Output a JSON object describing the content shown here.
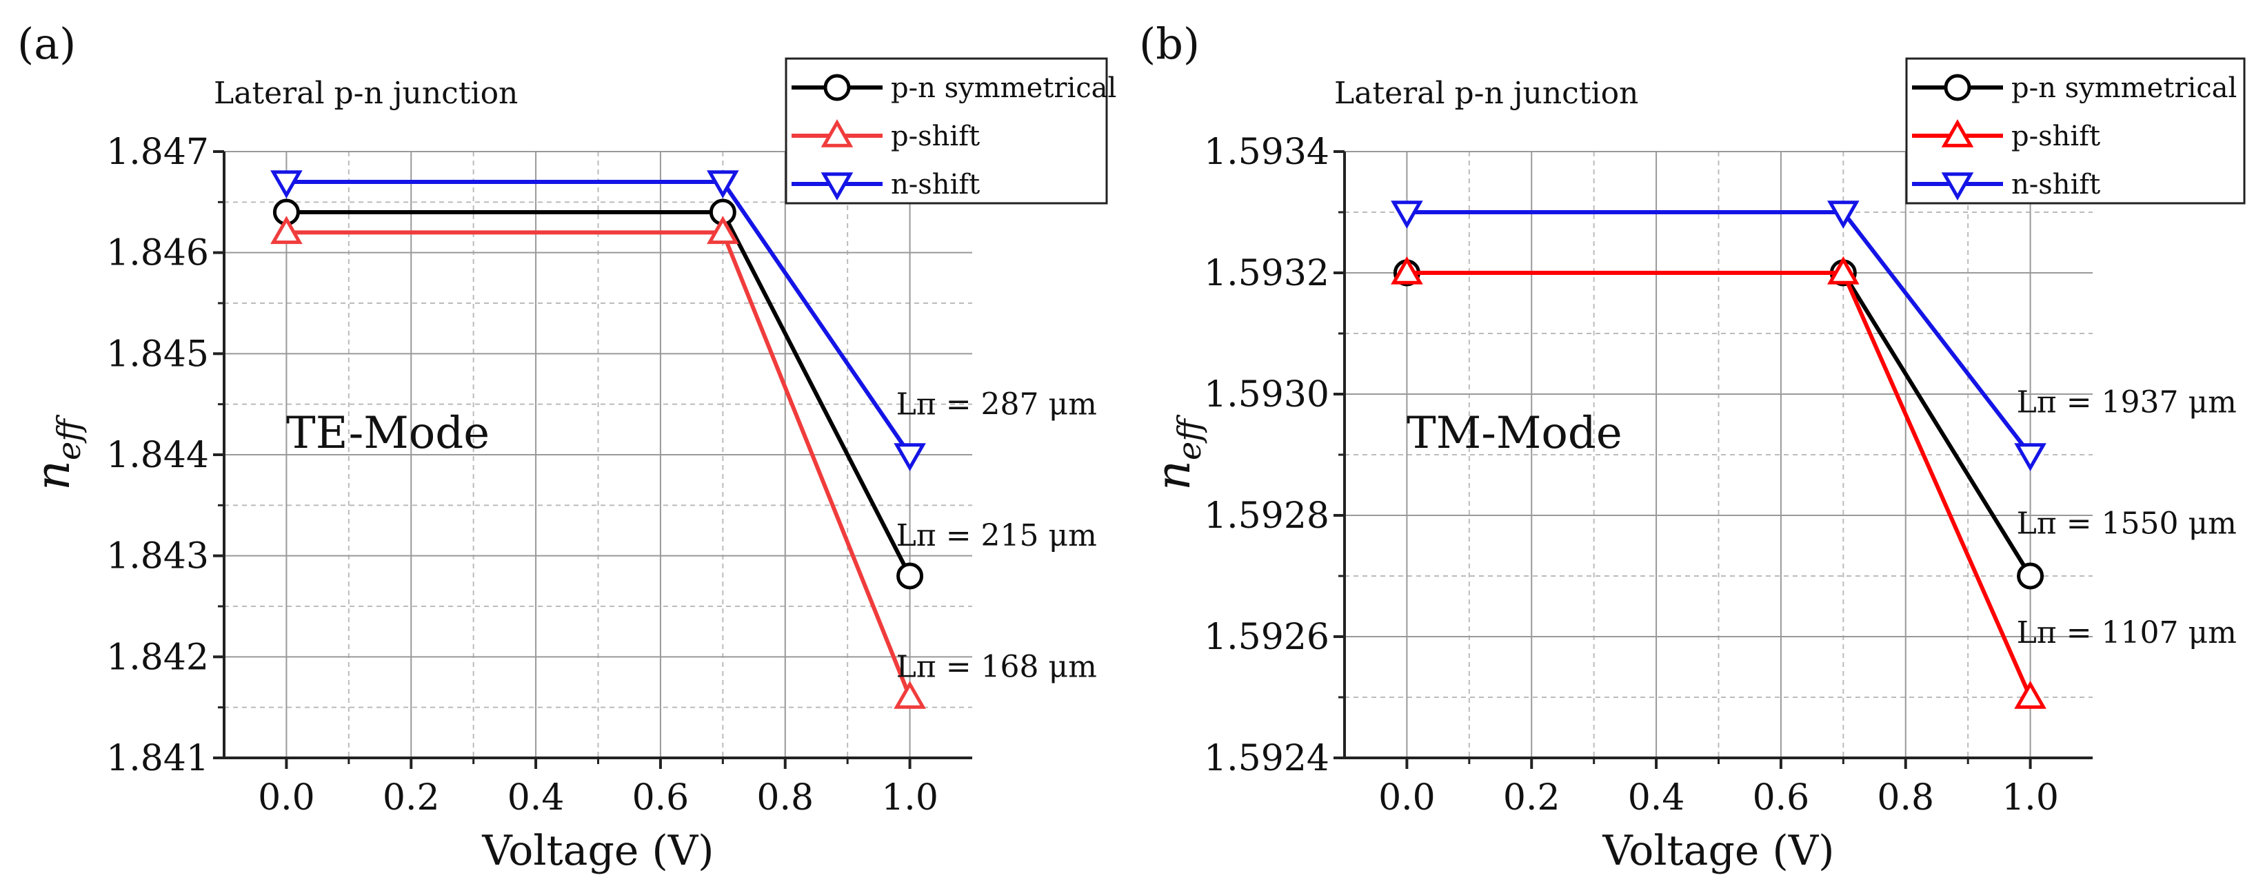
{
  "chart_data": [
    {
      "type": "line",
      "panel_label": "(a)",
      "subtitle": "Lateral p-n junction",
      "mode_label": "TE-Mode",
      "xlabel": "Voltage (V)",
      "ylabel_main": "n",
      "ylabel_sub": "eff",
      "x": [
        0.0,
        0.7,
        1.0
      ],
      "xlim": [
        -0.1,
        1.1
      ],
      "ylim": [
        1.841,
        1.847
      ],
      "xticks": [
        0.0,
        0.2,
        0.4,
        0.6,
        0.8,
        1.0
      ],
      "xtick_labels": [
        "0.0",
        "0.2",
        "0.4",
        "0.6",
        "0.8",
        "1.0"
      ],
      "yticks": [
        1.841,
        1.842,
        1.843,
        1.844,
        1.845,
        1.846,
        1.847
      ],
      "ytick_labels": [
        "1.841",
        "1.842",
        "1.843",
        "1.844",
        "1.845",
        "1.846",
        "1.847"
      ],
      "grid": true,
      "legend_position": "top-right",
      "series": [
        {
          "name": "p-n symmetrical",
          "color": "#000000",
          "marker": "circle",
          "values": [
            1.8464,
            1.8464,
            1.8428
          ]
        },
        {
          "name": "p-shift",
          "color": "#f03c3c",
          "marker": "triangle-up",
          "values": [
            1.8462,
            1.8462,
            1.8416
          ]
        },
        {
          "name": "n-shift",
          "color": "#1414e6",
          "marker": "triangle-down",
          "values": [
            1.8467,
            1.8467,
            1.844
          ]
        }
      ],
      "annotations": [
        {
          "text": "Lπ = 287 μm",
          "x": 1.0,
          "y": 1.8444
        },
        {
          "text": "Lπ = 215 μm",
          "x": 1.0,
          "y": 1.8431
        },
        {
          "text": "Lπ = 168 μm",
          "x": 1.0,
          "y": 1.8418
        }
      ]
    },
    {
      "type": "line",
      "panel_label": "(b)",
      "subtitle": "Lateral p-n junction",
      "mode_label": "TM-Mode",
      "xlabel": "Voltage (V)",
      "ylabel_main": "n",
      "ylabel_sub": "eff",
      "x": [
        0.0,
        0.7,
        1.0
      ],
      "xlim": [
        -0.1,
        1.1
      ],
      "ylim": [
        1.5924,
        1.5934
      ],
      "xticks": [
        0.0,
        0.2,
        0.4,
        0.6,
        0.8,
        1.0
      ],
      "xtick_labels": [
        "0.0",
        "0.2",
        "0.4",
        "0.6",
        "0.8",
        "1.0"
      ],
      "yticks": [
        1.5924,
        1.5926,
        1.5928,
        1.593,
        1.5932,
        1.5934
      ],
      "ytick_labels": [
        "1.5924",
        "1.5926",
        "1.5928",
        "1.5930",
        "1.5932",
        "1.5934"
      ],
      "grid": true,
      "legend_position": "top-right",
      "series": [
        {
          "name": "p-n symmetrical",
          "color": "#000000",
          "marker": "circle",
          "values": [
            1.5932,
            1.5932,
            1.5927
          ]
        },
        {
          "name": "p-shift",
          "color": "#ff0000",
          "marker": "triangle-up",
          "values": [
            1.5932,
            1.5932,
            1.5925
          ]
        },
        {
          "name": "n-shift",
          "color": "#1414e6",
          "marker": "triangle-down",
          "values": [
            1.5933,
            1.5933,
            1.5929
          ]
        }
      ],
      "annotations": [
        {
          "text": "Lπ = 1937 μm",
          "x": 1.0,
          "y": 1.59297
        },
        {
          "text": "Lπ = 1550 μm",
          "x": 1.0,
          "y": 1.59277
        },
        {
          "text": "Lπ = 1107 μm",
          "x": 1.0,
          "y": 1.59259
        }
      ]
    }
  ]
}
